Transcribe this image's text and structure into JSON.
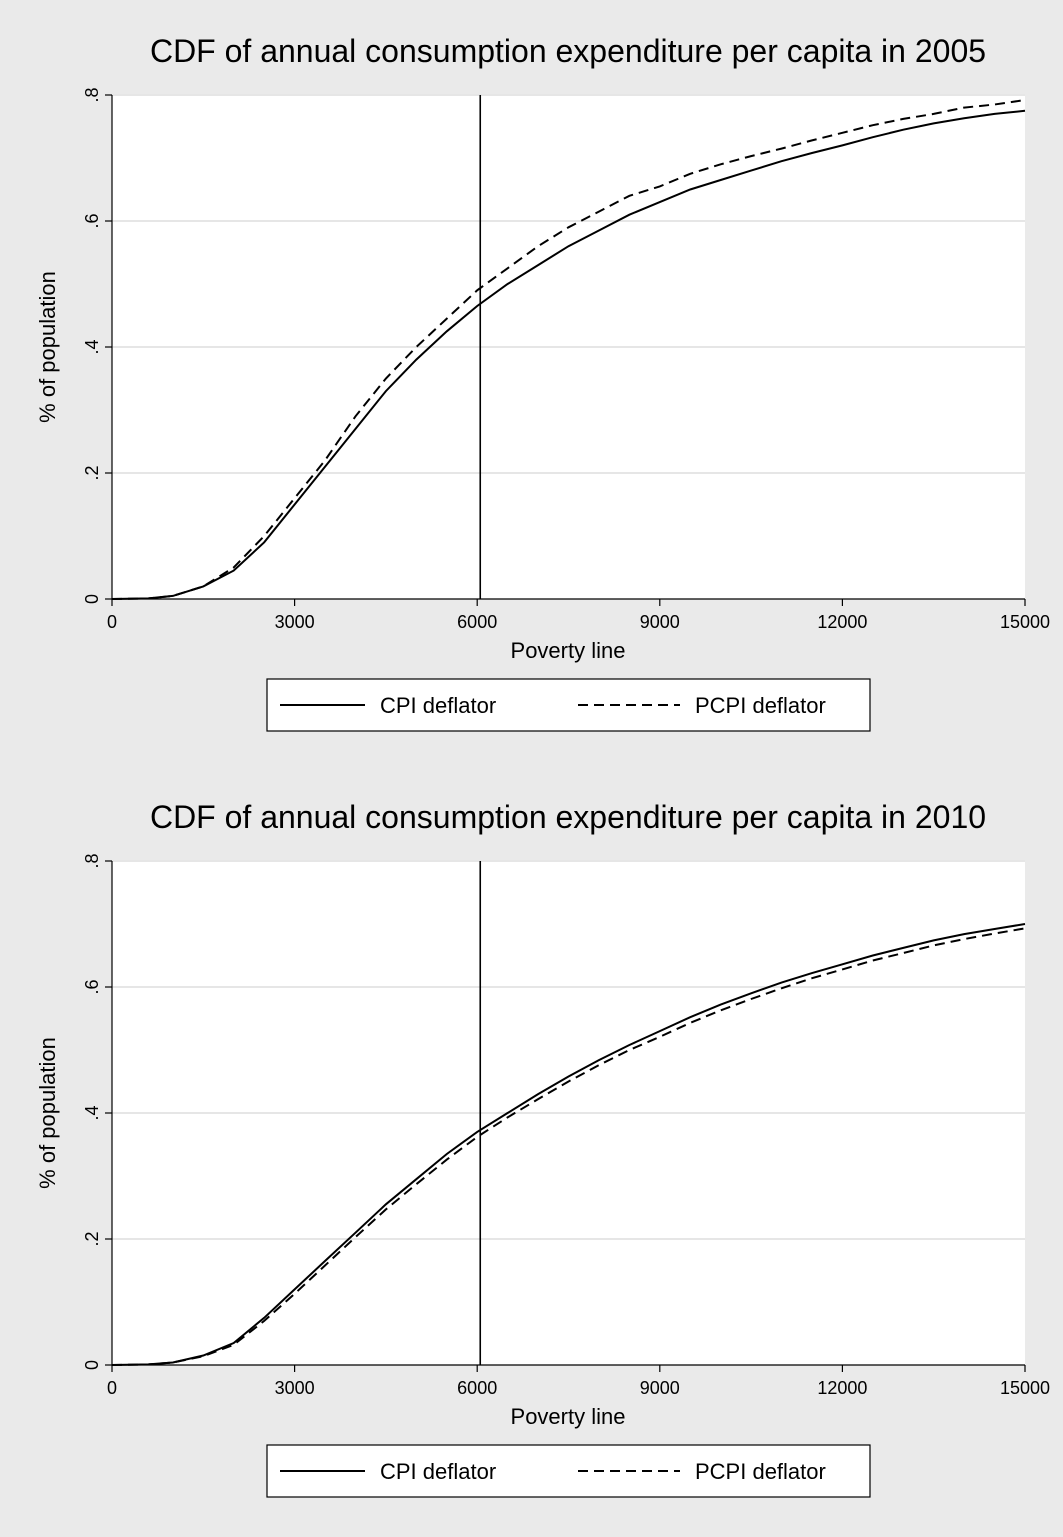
{
  "chart_data": [
    {
      "type": "line",
      "title": "CDF of annual consumption expenditure per capita in 2005",
      "xlabel": "Poverty line",
      "ylabel": "% of population",
      "xlim": [
        0,
        15000
      ],
      "ylim": [
        0,
        0.8
      ],
      "xticks": [
        0,
        3000,
        6000,
        9000,
        12000,
        15000
      ],
      "xtick_labels": [
        "0",
        "3000",
        "6000",
        "9000",
        "12000",
        "15000"
      ],
      "yticks": [
        0,
        0.2,
        0.4,
        0.6,
        0.8
      ],
      "ytick_labels": [
        "0",
        ".2",
        ".4",
        ".6",
        ".8"
      ],
      "grid": "horizontal",
      "legend_position": "bottom",
      "reference_line_x": 6050,
      "series": [
        {
          "name": "CPI deflator",
          "style": "solid",
          "x": [
            0,
            600,
            1000,
            1500,
            2000,
            2500,
            3000,
            3500,
            4000,
            4500,
            5000,
            5500,
            6000,
            6500,
            7000,
            7500,
            8000,
            8500,
            9000,
            9500,
            10000,
            10500,
            11000,
            11500,
            12000,
            12500,
            13000,
            13500,
            14000,
            14500,
            15000
          ],
          "values": [
            0,
            0.001,
            0.005,
            0.02,
            0.045,
            0.09,
            0.15,
            0.21,
            0.27,
            0.33,
            0.38,
            0.425,
            0.465,
            0.5,
            0.53,
            0.56,
            0.585,
            0.61,
            0.63,
            0.65,
            0.665,
            0.68,
            0.695,
            0.708,
            0.72,
            0.733,
            0.745,
            0.755,
            0.763,
            0.77,
            0.775
          ]
        },
        {
          "name": "PCPI deflator",
          "style": "dashed",
          "x": [
            0,
            600,
            1000,
            1500,
            2000,
            2500,
            3000,
            3500,
            4000,
            4500,
            5000,
            5500,
            6000,
            6500,
            7000,
            7500,
            8000,
            8500,
            9000,
            9500,
            10000,
            10500,
            11000,
            11500,
            12000,
            12500,
            13000,
            13500,
            14000,
            14500,
            15000
          ],
          "values": [
            0,
            0.001,
            0.005,
            0.02,
            0.05,
            0.1,
            0.16,
            0.22,
            0.29,
            0.35,
            0.4,
            0.445,
            0.49,
            0.525,
            0.56,
            0.59,
            0.615,
            0.64,
            0.655,
            0.675,
            0.69,
            0.703,
            0.715,
            0.728,
            0.74,
            0.752,
            0.762,
            0.77,
            0.78,
            0.785,
            0.792
          ]
        }
      ]
    },
    {
      "type": "line",
      "title": "CDF of annual consumption expenditure per capita in 2010",
      "xlabel": "Poverty line",
      "ylabel": "% of population",
      "xlim": [
        0,
        15000
      ],
      "ylim": [
        0,
        0.8
      ],
      "xticks": [
        0,
        3000,
        6000,
        9000,
        12000,
        15000
      ],
      "xtick_labels": [
        "0",
        "3000",
        "6000",
        "9000",
        "12000",
        "15000"
      ],
      "yticks": [
        0,
        0.2,
        0.4,
        0.6,
        0.8
      ],
      "ytick_labels": [
        "0",
        ".2",
        ".4",
        ".6",
        ".8"
      ],
      "grid": "horizontal",
      "legend_position": "bottom",
      "reference_line_x": 6050,
      "series": [
        {
          "name": "CPI deflator",
          "style": "solid",
          "x": [
            0,
            600,
            1000,
            1500,
            2000,
            2500,
            3000,
            3500,
            4000,
            4500,
            5000,
            5500,
            6000,
            6500,
            7000,
            7500,
            8000,
            8500,
            9000,
            9500,
            10000,
            10500,
            11000,
            11500,
            12000,
            12500,
            13000,
            13500,
            14000,
            14500,
            15000
          ],
          "values": [
            0,
            0.001,
            0.004,
            0.015,
            0.035,
            0.075,
            0.12,
            0.165,
            0.21,
            0.255,
            0.295,
            0.335,
            0.37,
            0.4,
            0.43,
            0.458,
            0.484,
            0.508,
            0.53,
            0.552,
            0.572,
            0.59,
            0.607,
            0.622,
            0.636,
            0.65,
            0.662,
            0.674,
            0.684,
            0.692,
            0.7
          ]
        },
        {
          "name": "PCPI deflator",
          "style": "dashed",
          "x": [
            0,
            600,
            1000,
            1500,
            2000,
            2500,
            3000,
            3500,
            4000,
            4500,
            5000,
            5500,
            6000,
            6500,
            7000,
            7500,
            8000,
            8500,
            9000,
            9500,
            10000,
            10500,
            11000,
            11500,
            12000,
            12500,
            13000,
            13500,
            14000,
            14500,
            15000
          ],
          "values": [
            0,
            0.001,
            0.004,
            0.014,
            0.032,
            0.07,
            0.113,
            0.158,
            0.203,
            0.247,
            0.287,
            0.326,
            0.362,
            0.393,
            0.422,
            0.45,
            0.476,
            0.5,
            0.521,
            0.543,
            0.563,
            0.581,
            0.598,
            0.614,
            0.628,
            0.642,
            0.654,
            0.666,
            0.676,
            0.685,
            0.693
          ]
        }
      ]
    }
  ]
}
